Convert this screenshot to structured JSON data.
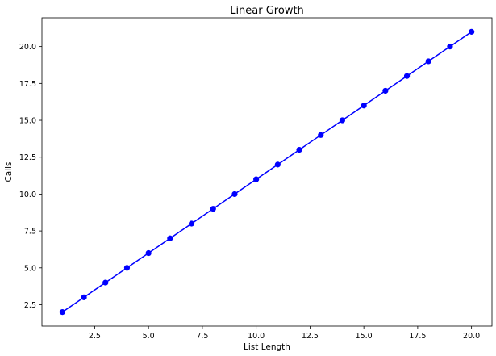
{
  "chart_data": {
    "type": "line",
    "title": "Linear Growth",
    "xlabel": "List Length",
    "ylabel": "Calls",
    "xlim": [
      0.05,
      20.95
    ],
    "ylim": [
      1.05,
      21.95
    ],
    "x_ticks": [
      2.5,
      5.0,
      7.5,
      10.0,
      12.5,
      15.0,
      17.5,
      20.0
    ],
    "y_ticks": [
      2.5,
      5.0,
      7.5,
      10.0,
      12.5,
      15.0,
      17.5,
      20.0
    ],
    "grid": false,
    "series": [
      {
        "color": "#0000ff",
        "marker": "circle",
        "x": [
          1,
          2,
          3,
          4,
          5,
          6,
          7,
          8,
          9,
          10,
          11,
          12,
          13,
          14,
          15,
          16,
          17,
          18,
          19,
          20
        ],
        "y": [
          2,
          3,
          4,
          5,
          6,
          7,
          8,
          9,
          10,
          11,
          12,
          13,
          14,
          15,
          16,
          17,
          18,
          19,
          20,
          21
        ]
      }
    ]
  }
}
